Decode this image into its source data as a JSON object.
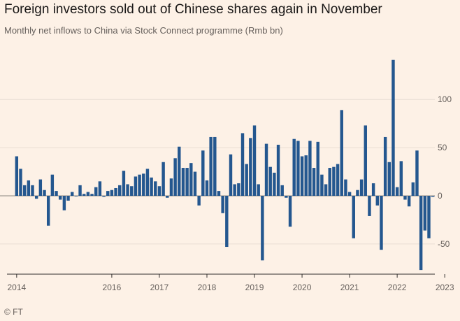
{
  "header": {
    "title": "Foreign investors sold out of Chinese shares again in November",
    "subtitle": "Monthly net inflows to China via Stock Connect programme (Rmb bn)"
  },
  "footer": {
    "source": "© FT"
  },
  "colors": {
    "bar": "#24578f",
    "grid": "#e8ddd3",
    "zero": "#8c8680",
    "background": "#fdf1e6"
  },
  "chart_data": {
    "type": "bar",
    "title": "Foreign investors sold out of Chinese shares again in November",
    "subtitle": "Monthly net inflows to China via Stock Connect programme (Rmb bn)",
    "xlabel": "",
    "ylabel": "Rmb bn",
    "ylim": [
      -80,
      145
    ],
    "yticks": [
      -50,
      0,
      50,
      100
    ],
    "ytick_labels": [
      "-50",
      "0",
      "50",
      "100"
    ],
    "grid": true,
    "start": "2014-01",
    "xticks": [
      {
        "label": "2014",
        "index": 0
      },
      {
        "label": "2016",
        "index": 24
      },
      {
        "label": "2017",
        "index": 36
      },
      {
        "label": "2018",
        "index": 48
      },
      {
        "label": "2019",
        "index": 60
      },
      {
        "label": "2020",
        "index": 72
      },
      {
        "label": "2021",
        "index": 84
      },
      {
        "label": "2022",
        "index": 96
      },
      {
        "label": "2023",
        "index": 108
      }
    ],
    "series": [
      {
        "name": "Monthly net inflows",
        "values": [
          41,
          28,
          11,
          16,
          11,
          -3,
          17,
          6,
          -31,
          22,
          5,
          -4,
          -15,
          -5,
          4,
          0,
          11,
          2,
          4,
          2,
          9,
          15,
          -1,
          5,
          6,
          8,
          11,
          26,
          12,
          10,
          20,
          22,
          23,
          28,
          19,
          15,
          10,
          35,
          -2,
          18,
          39,
          51,
          29,
          29,
          34,
          25,
          -10,
          47,
          16,
          61,
          61,
          5,
          -18,
          -53,
          43,
          12,
          13,
          65,
          33,
          60,
          73,
          12,
          -67,
          54,
          30,
          24,
          53,
          11,
          -2,
          -32,
          59,
          57,
          41,
          42,
          57,
          29,
          56,
          22,
          12,
          29,
          30,
          33,
          89,
          17,
          4,
          -44,
          6,
          17,
          73,
          -21,
          13,
          -10,
          -56,
          61,
          35,
          141,
          9,
          36,
          -4,
          -11,
          14,
          47,
          -77,
          -36,
          -44,
          -1
        ]
      }
    ]
  }
}
